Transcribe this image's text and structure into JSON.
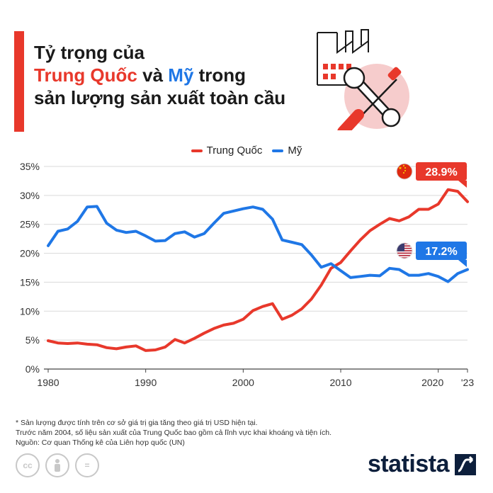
{
  "header": {
    "title_line1": "Tỷ trọng của",
    "title_china": "Trung Quốc",
    "title_and": "và",
    "title_us": "Mỹ",
    "title_line2_end": "trong",
    "title_line3": "sản lượng sản xuất toàn cầu",
    "colors": {
      "accent": "#e8382b",
      "us": "#1f77e6",
      "text": "#1a1a1a"
    }
  },
  "legend": [
    {
      "label": "Trung Quốc",
      "color": "#e8382b"
    },
    {
      "label": "Mỹ",
      "color": "#1f77e6"
    }
  ],
  "chart_data": {
    "type": "line",
    "x": [
      1980,
      1981,
      1982,
      1983,
      1984,
      1985,
      1986,
      1987,
      1988,
      1989,
      1990,
      1991,
      1992,
      1993,
      1994,
      1995,
      1996,
      1997,
      1998,
      1999,
      2000,
      2001,
      2002,
      2003,
      2004,
      2005,
      2006,
      2007,
      2008,
      2009,
      2010,
      2011,
      2012,
      2013,
      2014,
      2015,
      2016,
      2017,
      2018,
      2019,
      2020,
      2021,
      2022,
      2023
    ],
    "series": [
      {
        "name": "Trung Quốc",
        "color": "#e8382b",
        "values": [
          4.9,
          4.5,
          4.4,
          4.5,
          4.3,
          4.2,
          3.7,
          3.5,
          3.8,
          4.0,
          3.2,
          3.3,
          3.8,
          5.1,
          4.5,
          5.3,
          6.2,
          7.0,
          7.6,
          7.9,
          8.6,
          10.1,
          10.8,
          11.3,
          8.6,
          9.3,
          10.4,
          12.1,
          14.5,
          17.4,
          18.4,
          20.4,
          22.3,
          23.9,
          25.0,
          26.0,
          25.6,
          26.3,
          27.6,
          27.6,
          28.5,
          31.0,
          30.7,
          28.9
        ]
      },
      {
        "name": "Mỹ",
        "color": "#1f77e6",
        "values": [
          21.3,
          23.8,
          24.2,
          25.5,
          28.0,
          28.1,
          25.2,
          24.0,
          23.6,
          23.8,
          23.0,
          22.1,
          22.2,
          23.4,
          23.7,
          22.8,
          23.4,
          25.2,
          26.9,
          27.3,
          27.7,
          28.0,
          27.6,
          25.9,
          22.3,
          21.9,
          21.5,
          19.7,
          17.6,
          18.2,
          17.0,
          15.8,
          16.0,
          16.2,
          16.1,
          17.4,
          17.2,
          16.2,
          16.2,
          16.5,
          16.0,
          15.1,
          16.5,
          17.2
        ]
      }
    ],
    "y_ticks": [
      "35%",
      "30%",
      "25%",
      "20%",
      "15%",
      "10%",
      "5%",
      "0%"
    ],
    "x_ticks": [
      "1980",
      "1990",
      "2000",
      "2010",
      "2020",
      "'23"
    ],
    "ylim": [
      0,
      35
    ],
    "xlim": [
      1980,
      2023
    ],
    "grid": true,
    "legend_position": "top-center",
    "annotations": [
      {
        "label": "28.9%",
        "series": "Trung Quốc",
        "flag": "china-flag-icon"
      },
      {
        "label": "17.2%",
        "series": "Mỹ",
        "flag": "us-flag-icon"
      }
    ]
  },
  "notes": [
    "* Sản lượng được tính trên cơ sở giá trị gia tăng theo giá trị USD hiện tại.",
    "Trước năm 2004, số liệu sản xuất của Trung Quốc bao gồm cả lĩnh vực khai khoáng và tiện ích.",
    "Nguồn: Cơ quan Thống kê của Liên hợp quốc (UN)"
  ],
  "footer": {
    "brand": "statista",
    "license_icons": [
      "cc-icon",
      "by-icon",
      "nd-icon"
    ],
    "license_glyphs": [
      "cc",
      "="
    ]
  }
}
